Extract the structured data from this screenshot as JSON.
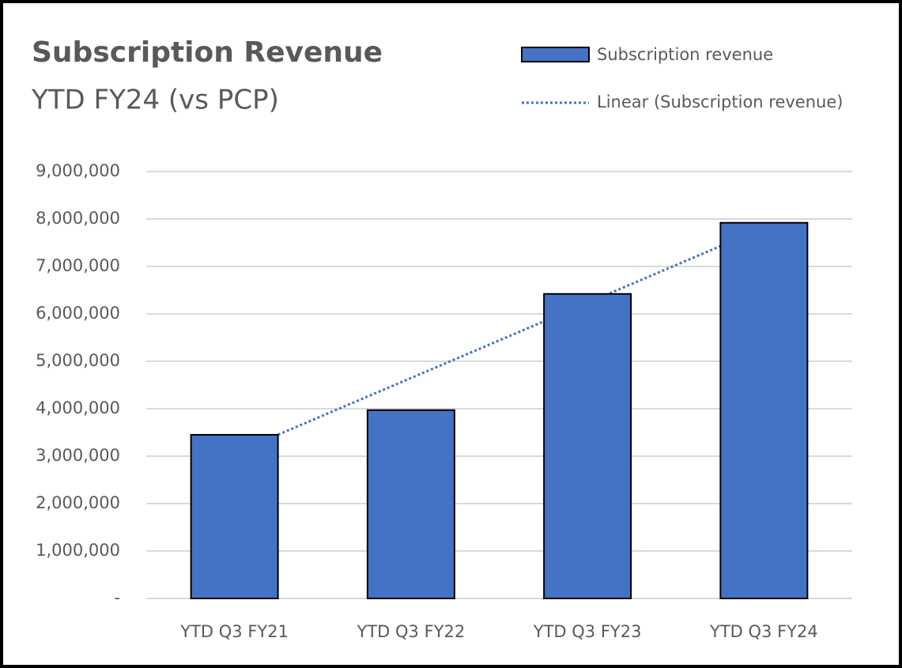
{
  "chart_data": {
    "type": "bar",
    "title": "Subscription Revenue",
    "subtitle": "YTD FY24 (vs PCP)",
    "categories": [
      "YTD Q3 FY21",
      "YTD Q3 FY22",
      "YTD Q3 FY23",
      "YTD Q3 FY24"
    ],
    "series": [
      {
        "name": "Subscription revenue",
        "color": "#4472c4",
        "values": [
          3450000,
          3970000,
          6420000,
          7920000
        ]
      }
    ],
    "trendline": {
      "name": "Linear (Subscription revenue)",
      "kind": "linear",
      "color": "#4472c4"
    },
    "ylim": [
      0,
      9000000
    ],
    "yticks": [
      {
        "value": 0,
        "label": "-"
      },
      {
        "value": 1000000,
        "label": "1,000,000"
      },
      {
        "value": 2000000,
        "label": "2,000,000"
      },
      {
        "value": 3000000,
        "label": "3,000,000"
      },
      {
        "value": 4000000,
        "label": "4,000,000"
      },
      {
        "value": 5000000,
        "label": "5,000,000"
      },
      {
        "value": 6000000,
        "label": "6,000,000"
      },
      {
        "value": 7000000,
        "label": "7,000,000"
      },
      {
        "value": 8000000,
        "label": "8,000,000"
      },
      {
        "value": 9000000,
        "label": "9,000,000"
      }
    ],
    "grid": true,
    "legend": "top-right"
  }
}
